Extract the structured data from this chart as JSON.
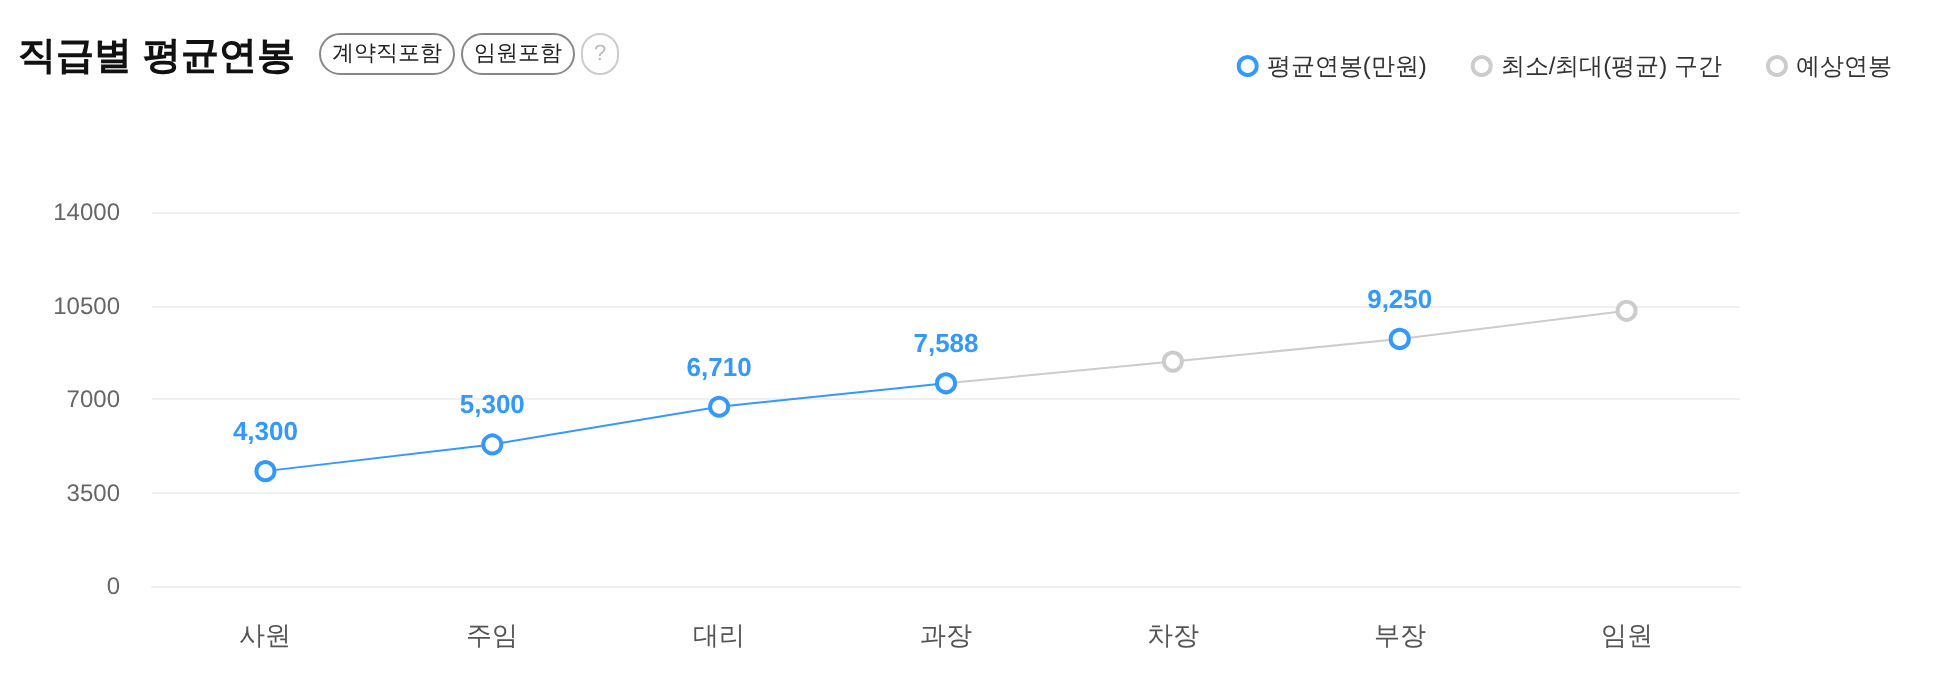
{
  "chart_data": {
    "type": "line",
    "title": "직급별 평균연봉",
    "annotations": [
      "계약직포함",
      "임원포함",
      "?"
    ],
    "categories": [
      "사원",
      "주임",
      "대리",
      "과장",
      "차장",
      "부장",
      "임원"
    ],
    "series": [
      {
        "name": "평균연봉(만원)",
        "color": "#3399ff",
        "values": [
          4300,
          5300,
          6710,
          7588,
          null,
          9250,
          null
        ],
        "value_labels": [
          "4,300",
          "5,300",
          "6,710",
          "7,588",
          null,
          "9,250",
          null
        ]
      },
      {
        "name": "최소/최대(평균) 구간",
        "color": "#cccccc",
        "values": [
          null,
          null,
          null,
          null,
          null,
          null,
          null
        ]
      },
      {
        "name": "예상연봉",
        "color": "#cccccc",
        "values": [
          null,
          null,
          null,
          7588,
          8400,
          9250,
          10300
        ]
      }
    ],
    "ylim": [
      0,
      14000
    ],
    "yticks": [
      0,
      3500,
      7000,
      10500,
      14000
    ],
    "grid": "y",
    "legend": "top right",
    "marker": "circle",
    "line_style": "solid"
  }
}
